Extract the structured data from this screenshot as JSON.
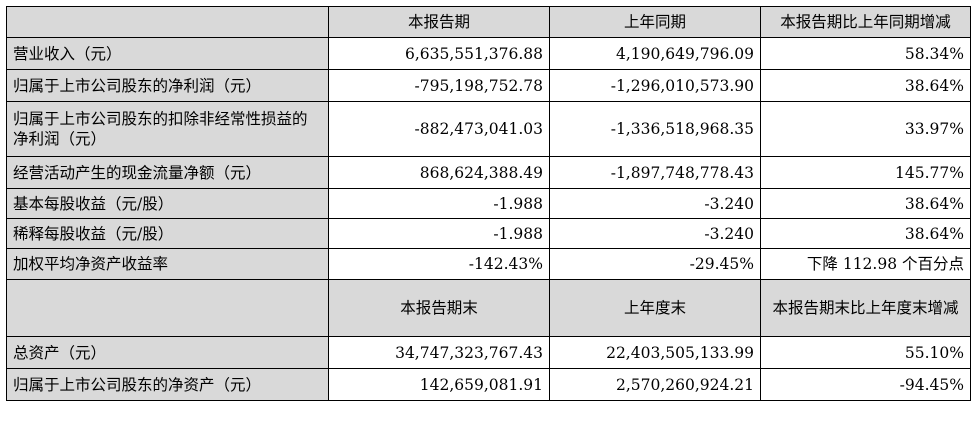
{
  "header_1": {
    "col_label": "",
    "col1": "本报告期",
    "col2": "上年同期",
    "col3": "本报告期比上年同期增减"
  },
  "rows_1": [
    {
      "label": "营业收入（元）",
      "current": "6,635,551,376.88",
      "prior": "4,190,649,796.09",
      "change": "58.34%"
    },
    {
      "label": "归属于上市公司股东的净利润（元）",
      "current": "-795,198,752.78",
      "prior": "-1,296,010,573.90",
      "change": "38.64%"
    },
    {
      "label": "归属于上市公司股东的扣除非经常性损益的净利润（元）",
      "current": "-882,473,041.03",
      "prior": "-1,336,518,968.35",
      "change": "33.97%"
    },
    {
      "label": "经营活动产生的现金流量净额（元）",
      "current": "868,624,388.49",
      "prior": "-1,897,748,778.43",
      "change": "145.77%"
    },
    {
      "label": "基本每股收益（元/股）",
      "current": "-1.988",
      "prior": "-3.240",
      "change": "38.64%"
    },
    {
      "label": "稀释每股收益（元/股）",
      "current": "-1.988",
      "prior": "-3.240",
      "change": "38.64%"
    },
    {
      "label": "加权平均净资产收益率",
      "current": "-142.43%",
      "prior": "-29.45%",
      "change": "下降 112.98 个百分点"
    }
  ],
  "header_2": {
    "col_label": "",
    "col1": "本报告期末",
    "col2": "上年度末",
    "col3": "本报告期末比上年度末增减"
  },
  "rows_2": [
    {
      "label": "总资产（元）",
      "current": "34,747,323,767.43",
      "prior": "22,403,505,133.99",
      "change": "55.10%"
    },
    {
      "label": "归属于上市公司股东的净资产（元）",
      "current": "142,659,081.91",
      "prior": "2,570,260,924.21",
      "change": "-94.45%"
    }
  ]
}
